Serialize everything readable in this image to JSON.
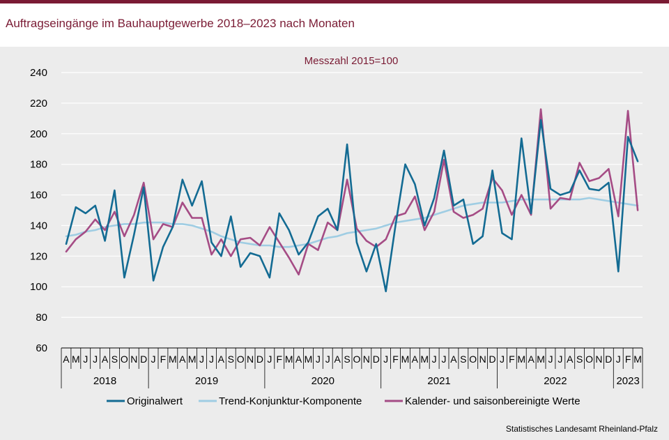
{
  "title": "Auftragseingänge im Bauhauptgewerbe 2018–2023 nach Monaten",
  "source": "Statistisches Landesamt  Rheinland-Pfalz",
  "colors": {
    "brand": "#7a1b34",
    "panel": "#ececec"
  },
  "chart_data": {
    "type": "line",
    "subtitle": "Messzahl  2015=100",
    "ylim": [
      60,
      240
    ],
    "yticks": [
      60,
      80,
      100,
      120,
      140,
      160,
      180,
      200,
      220,
      240
    ],
    "grid": true,
    "legend_position": "bottom",
    "x_month_labels": [
      "A",
      "M",
      "J",
      "J",
      "A",
      "S",
      "O",
      "N",
      "D",
      "J",
      "F",
      "M",
      "A",
      "M",
      "J",
      "J",
      "A",
      "S",
      "O",
      "N",
      "D",
      "J",
      "F",
      "M",
      "A",
      "M",
      "J",
      "J",
      "A",
      "S",
      "O",
      "N",
      "D",
      "J",
      "F",
      "M",
      "A",
      "M",
      "J",
      "J",
      "A",
      "S",
      "O",
      "N",
      "D",
      "J",
      "F",
      "M",
      "A",
      "M",
      "J",
      "J",
      "A",
      "S",
      "O",
      "N",
      "D",
      "J",
      "F",
      "M"
    ],
    "years": [
      {
        "label": "2018",
        "start": 0,
        "count": 9
      },
      {
        "label": "2019",
        "start": 9,
        "count": 12
      },
      {
        "label": "2020",
        "start": 21,
        "count": 12
      },
      {
        "label": "2021",
        "start": 33,
        "count": 12
      },
      {
        "label": "2022",
        "start": 45,
        "count": 12
      },
      {
        "label": "2023",
        "start": 57,
        "count": 3
      }
    ],
    "series": [
      {
        "name": "Originalwert",
        "color": "#136b93",
        "values": [
          128,
          152,
          148,
          153,
          130,
          163,
          106,
          134,
          165,
          104,
          126,
          139,
          170,
          153,
          169,
          129,
          120,
          146,
          113,
          122,
          120,
          106,
          148,
          137,
          121,
          129,
          146,
          151,
          137,
          193,
          129,
          110,
          128,
          97,
          140,
          180,
          167,
          140,
          158,
          189,
          153,
          157,
          128,
          133,
          176,
          135,
          131,
          197,
          148,
          209,
          164,
          160,
          162,
          176,
          164,
          163,
          168,
          110,
          198,
          182
        ]
      },
      {
        "name": "Trend-Konjunktur-Komponente",
        "color": "#9fcde3",
        "values": [
          133,
          134,
          136,
          137,
          139,
          140,
          141,
          141,
          142,
          142,
          142,
          141,
          141,
          140,
          138,
          136,
          133,
          131,
          129,
          128,
          127,
          127,
          126,
          126,
          127,
          128,
          130,
          132,
          133,
          135,
          136,
          137,
          138,
          140,
          142,
          143,
          144,
          145,
          147,
          149,
          151,
          153,
          154,
          155,
          155,
          155,
          156,
          157,
          157,
          157,
          157,
          157,
          157,
          157,
          158,
          157,
          156,
          155,
          154,
          153
        ]
      },
      {
        "name": "Kalender- und saisonbereinigte Werte",
        "color": "#a54c85",
        "values": [
          123,
          131,
          136,
          144,
          137,
          149,
          133,
          147,
          168,
          131,
          141,
          139,
          155,
          145,
          145,
          121,
          131,
          120,
          131,
          132,
          127,
          139,
          129,
          119,
          108,
          128,
          124,
          142,
          137,
          170,
          138,
          130,
          126,
          131,
          146,
          148,
          159,
          137,
          149,
          183,
          149,
          145,
          147,
          151,
          171,
          163,
          147,
          160,
          147,
          216,
          151,
          158,
          157,
          181,
          169,
          171,
          177,
          146,
          215,
          150
        ]
      }
    ]
  }
}
